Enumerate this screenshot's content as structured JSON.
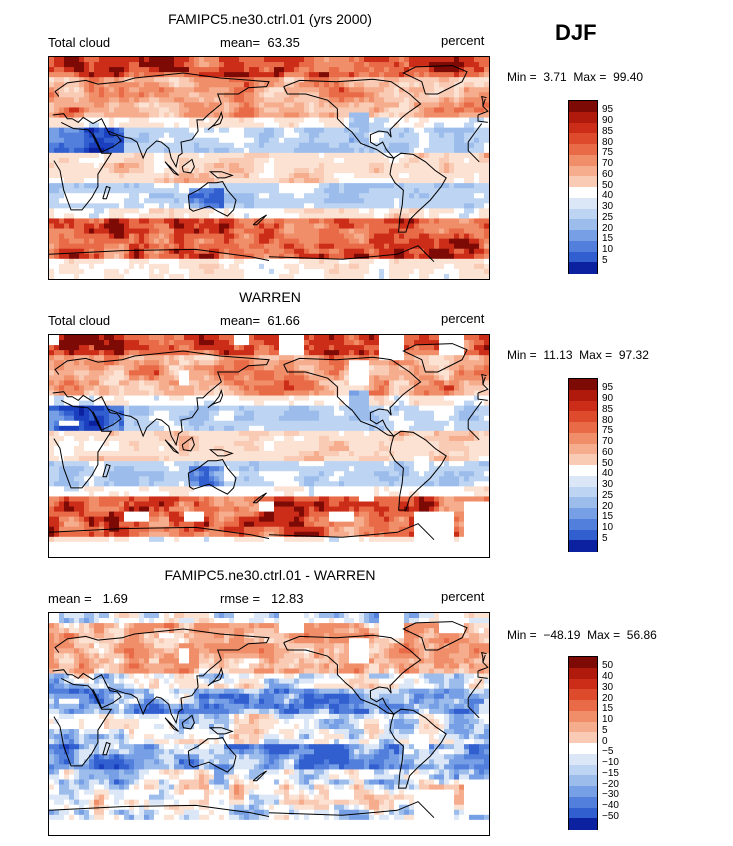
{
  "season": "DJF",
  "colors": {
    "pos": [
      "#fbe2d3",
      "#f9cbb5",
      "#f5ad8d",
      "#f08e69",
      "#e96a47",
      "#de4a2c",
      "#cc2d18",
      "#b01a0d",
      "#7d0a05"
    ],
    "mid": "#ffffff",
    "neg": [
      "#dbe7f7",
      "#bdd4f2",
      "#9cbdec",
      "#779fe5",
      "#527fdc",
      "#325fd0",
      "#1a3fbf",
      "#0c21a0",
      "#050b6e"
    ],
    "coast": "#000000",
    "land_missing": "#ffffff"
  },
  "panels": [
    {
      "title": "FAMIPC5.ne30.ctrl.01 (yrs 2000)",
      "left_label": "Total cloud",
      "center_label": "mean=",
      "center_value": "63.35",
      "units": "percent",
      "min_label": "Min =",
      "min_value": "3.71",
      "max_label": "Max =",
      "max_value": "99.40",
      "colorbar": [
        "95",
        "90",
        "85",
        "80",
        "75",
        "70",
        "60",
        "50",
        "40",
        "30",
        "25",
        "20",
        "15",
        "10",
        "5"
      ],
      "field": "model",
      "level_mean": 63.35
    },
    {
      "title": "WARREN",
      "left_label": "Total cloud",
      "center_label": "mean=",
      "center_value": "61.66",
      "units": "percent",
      "min_label": "Min =",
      "min_value": "11.13",
      "max_label": "Max =",
      "max_value": "97.32",
      "colorbar": [
        "95",
        "90",
        "85",
        "80",
        "75",
        "70",
        "60",
        "50",
        "40",
        "30",
        "25",
        "20",
        "15",
        "10",
        "5"
      ],
      "field": "obs",
      "level_mean": 61.66
    },
    {
      "title": "FAMIPC5.ne30.ctrl.01 - WARREN",
      "left_label": "mean =",
      "left_value": "1.69",
      "center_label": "rmse =",
      "center_value": "12.83",
      "units": "percent",
      "min_label": "Min =",
      "min_value": "−48.19",
      "max_label": "Max =",
      "max_value": "56.86",
      "colorbar": [
        "50",
        "40",
        "30",
        "20",
        "15",
        "10",
        "5",
        "0",
        "−5",
        "−10",
        "−15",
        "−20",
        "−30",
        "−40",
        "−50"
      ],
      "field": "diff",
      "level_mean": 1.69
    }
  ]
}
